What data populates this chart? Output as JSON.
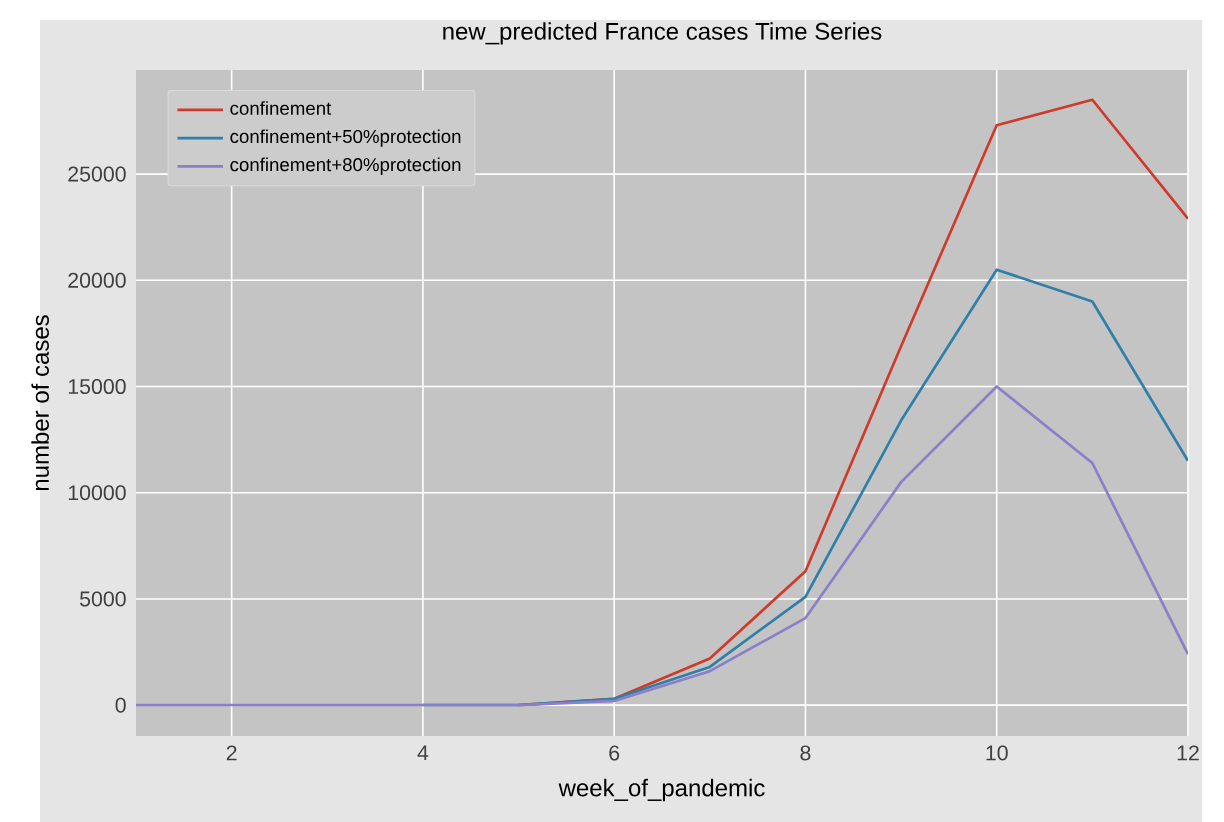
{
  "chart_data": {
    "type": "line",
    "title": "new_predicted France cases Time Series",
    "xlabel": "week_of_pandemic",
    "ylabel": "number of cases",
    "x": [
      1,
      2,
      3,
      4,
      5,
      6,
      7,
      8,
      9,
      10,
      11,
      12
    ],
    "series": [
      {
        "name": "confinement",
        "color": "#d03a2a",
        "values": [
          null,
          null,
          null,
          null,
          0,
          300,
          2200,
          6300,
          16900,
          27300,
          28500,
          22900
        ]
      },
      {
        "name": "confinement+50%protection",
        "color": "#2f7fa8",
        "values": [
          null,
          null,
          null,
          0,
          0,
          300,
          1800,
          5100,
          13400,
          20500,
          19000,
          11500
        ]
      },
      {
        "name": "confinement+80%protection",
        "color": "#8a7fc8",
        "values": [
          0,
          0,
          0,
          0,
          0,
          200,
          1600,
          4100,
          10500,
          15000,
          11400,
          2400
        ]
      }
    ],
    "xlim": [
      1,
      12
    ],
    "ylim": [
      -1450,
      29900
    ],
    "xticks": [
      2,
      4,
      6,
      8,
      10,
      12
    ],
    "yticks": [
      0,
      5000,
      10000,
      15000,
      20000,
      25000
    ],
    "grid": true,
    "legend": "top left",
    "marker": "none",
    "line_style": "solid"
  }
}
